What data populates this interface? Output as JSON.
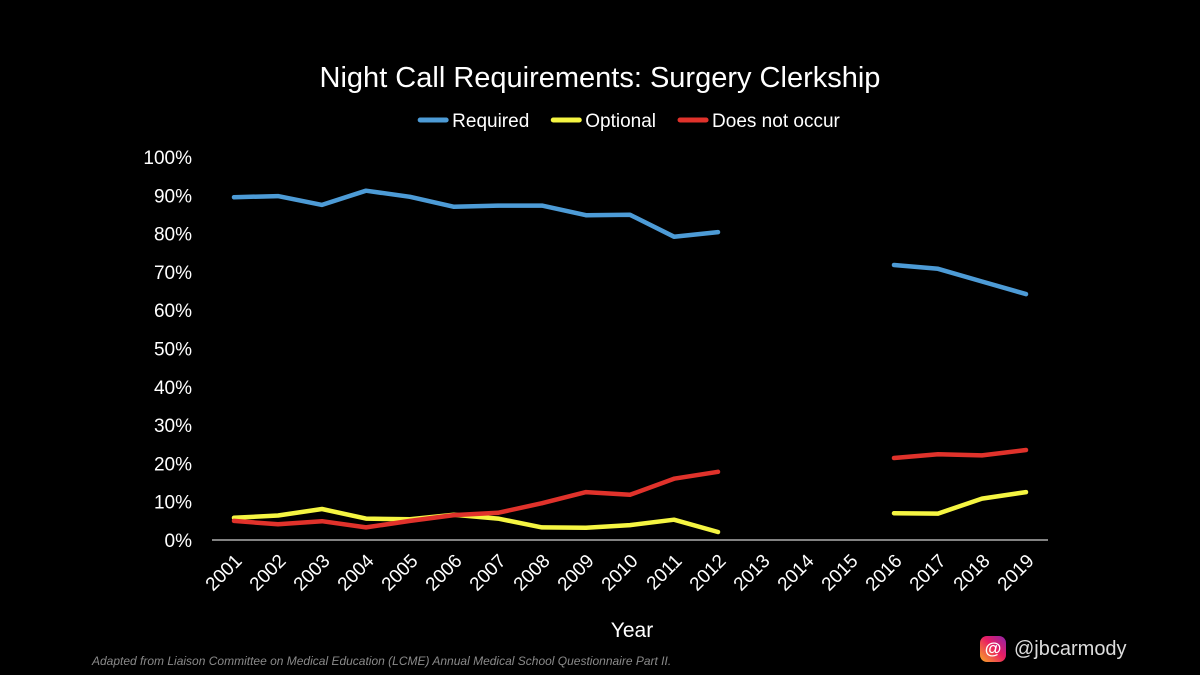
{
  "chart_data": {
    "type": "line",
    "title": "Night Call Requirements: Surgery Clerkship",
    "xlabel": "Year",
    "ylabel": "",
    "ylim": [
      0,
      100
    ],
    "yticks": [
      "0%",
      "10%",
      "20%",
      "30%",
      "40%",
      "50%",
      "60%",
      "70%",
      "80%",
      "90%",
      "100%"
    ],
    "categories": [
      "2001",
      "2002",
      "2003",
      "2004",
      "2005",
      "2006",
      "2007",
      "2008",
      "2009",
      "2010",
      "2011",
      "2012",
      "2013",
      "2014",
      "2015",
      "2016",
      "2017",
      "2018",
      "2019"
    ],
    "legend_position": "top",
    "grid": false,
    "series": [
      {
        "name": "Required",
        "color": "#4d9bd6",
        "values": [
          89.5,
          89.8,
          87.5,
          91.2,
          89.6,
          87.0,
          87.3,
          87.3,
          84.8,
          84.9,
          79.2,
          80.4,
          null,
          null,
          null,
          71.8,
          70.8,
          67.5,
          64.2
        ]
      },
      {
        "name": "Optional",
        "color": "#f5f542",
        "values": [
          5.8,
          6.4,
          8.1,
          5.6,
          5.4,
          6.6,
          5.6,
          3.3,
          3.2,
          3.9,
          5.3,
          2.1,
          null,
          null,
          null,
          7.0,
          6.9,
          10.8,
          12.5
        ]
      },
      {
        "name": "Does not occur",
        "color": "#e0322b",
        "values": [
          5.0,
          4.1,
          4.9,
          3.3,
          5.0,
          6.5,
          7.1,
          9.6,
          12.5,
          11.8,
          16.0,
          17.8,
          null,
          null,
          null,
          21.4,
          22.4,
          22.1,
          23.5
        ]
      }
    ]
  },
  "footer": {
    "source_note": "Adapted from Liaison Committee on Medical Education (LCME) Annual Medical School Questionnaire Part II.",
    "handle": "@jbcarmody",
    "logo_icon": "threads-icon"
  }
}
